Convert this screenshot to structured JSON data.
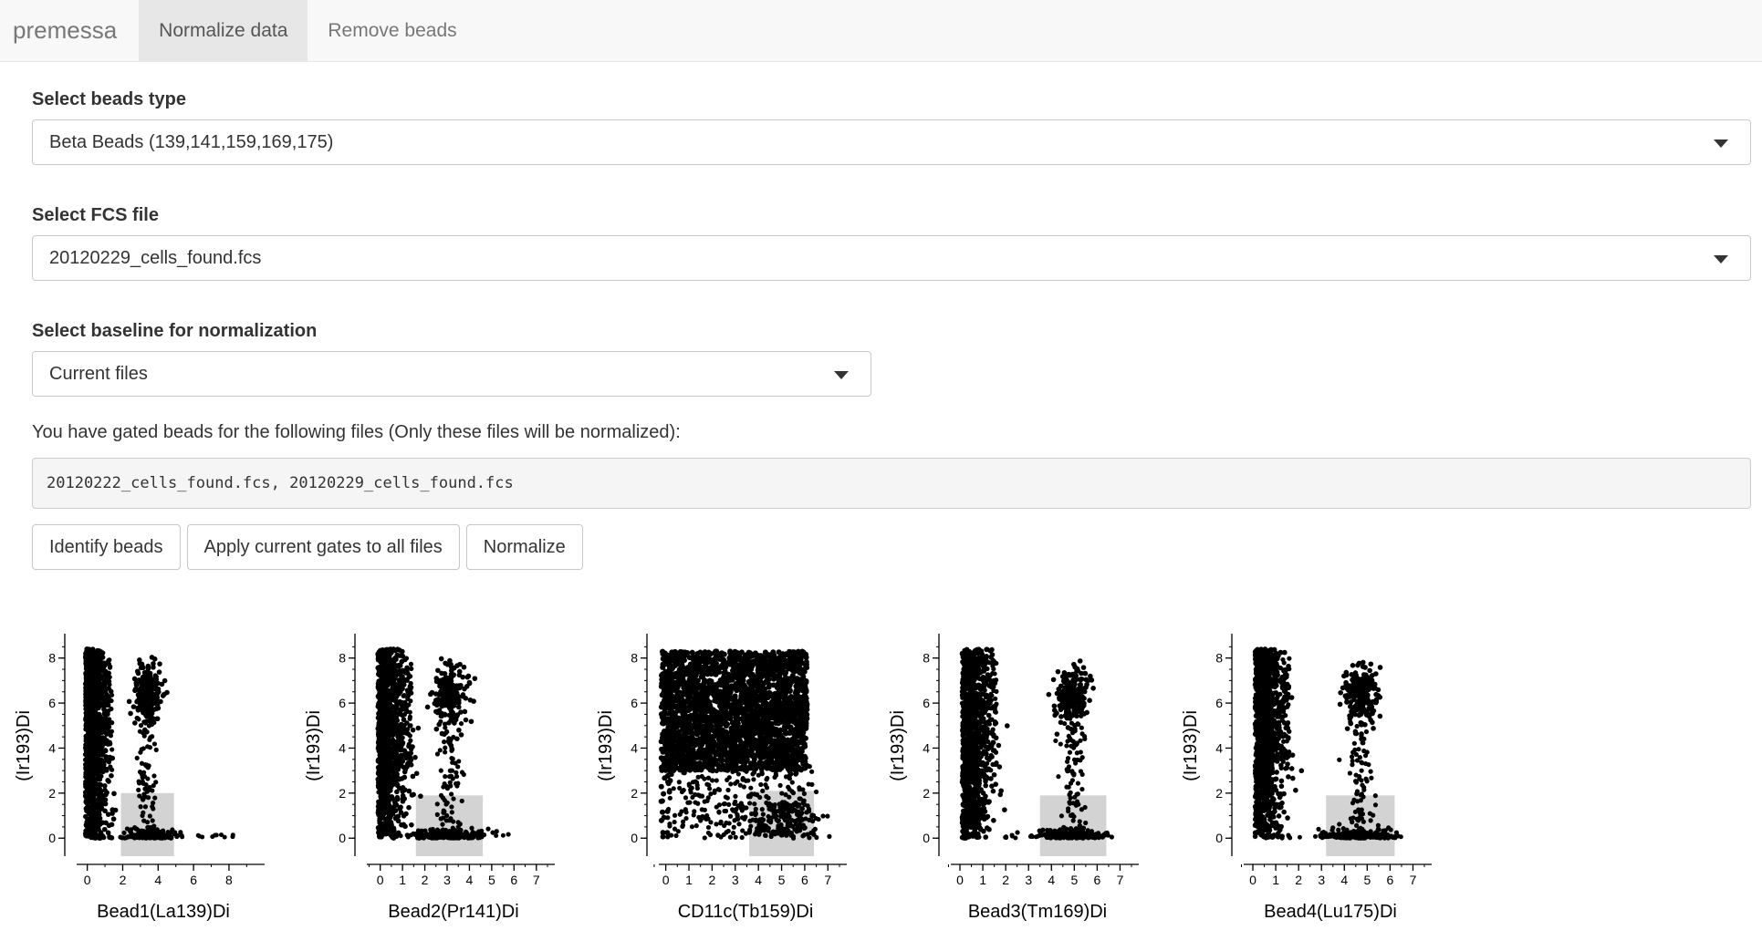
{
  "navbar": {
    "brand": "premessa",
    "tabs": [
      {
        "label": "Normalize data",
        "active": true
      },
      {
        "label": "Remove beads",
        "active": false
      }
    ]
  },
  "beads_type": {
    "label": "Select beads type",
    "value": "Beta Beads (139,141,159,169,175)"
  },
  "fcs_file": {
    "label": "Select FCS file",
    "value": "20120229_cells_found.fcs"
  },
  "baseline": {
    "label": "Select baseline for normalization",
    "value": "Current files"
  },
  "gated_info": {
    "text": "You have gated beads for the following files (Only these files will be normalized):",
    "files": "20120222_cells_found.fcs, 20120229_cells_found.fcs"
  },
  "buttons": {
    "identify": "Identify beads",
    "apply": "Apply current gates to all files",
    "normalize": "Normalize"
  },
  "chart_data": [
    {
      "type": "scatter",
      "xlabel": "Bead1(La139)Di",
      "ylabel": "(Ir193)Di",
      "xticks": [
        0,
        2,
        4,
        6,
        8
      ],
      "yticks": [
        0,
        2,
        4,
        6,
        8
      ],
      "xlim": [
        -0.6,
        9.6
      ],
      "ylim": [
        -0.8,
        9.0
      ],
      "gate": {
        "x": [
          1.9,
          4.9
        ],
        "y": [
          -0.8,
          2.0
        ]
      }
    },
    {
      "type": "scatter",
      "xlabel": "Bead2(Pr141)Di",
      "ylabel": "(Ir193)Di",
      "xticks": [
        0,
        1,
        2,
        3,
        4,
        5,
        6,
        7
      ],
      "yticks": [
        0,
        2,
        4,
        6,
        8
      ],
      "xlim": [
        -0.6,
        7.5
      ],
      "ylim": [
        -0.8,
        9.0
      ],
      "gate": {
        "x": [
          1.6,
          4.6
        ],
        "y": [
          -0.8,
          1.9
        ]
      }
    },
    {
      "type": "scatter",
      "xlabel": "CD11c(Tb159)Di",
      "ylabel": "(Ir193)Di",
      "xticks": [
        0,
        1,
        2,
        3,
        4,
        5,
        6,
        7
      ],
      "yticks": [
        0,
        2,
        4,
        6,
        8
      ],
      "xlim": [
        -0.3,
        7.5
      ],
      "ylim": [
        -0.8,
        9.0
      ],
      "gate": {
        "x": [
          3.6,
          6.4
        ],
        "y": [
          -0.8,
          2.1
        ]
      }
    },
    {
      "type": "scatter",
      "xlabel": "Bead3(Tm169)Di",
      "ylabel": "(Ir193)Di",
      "xticks": [
        0,
        1,
        2,
        3,
        4,
        5,
        6,
        7
      ],
      "yticks": [
        0,
        2,
        4,
        6,
        8
      ],
      "xlim": [
        -0.4,
        7.5
      ],
      "ylim": [
        -0.8,
        9.0
      ],
      "gate": {
        "x": [
          3.5,
          6.4
        ],
        "y": [
          -0.8,
          1.9
        ]
      }
    },
    {
      "type": "scatter",
      "xlabel": "Bead4(Lu175)Di",
      "ylabel": "(Ir193)Di",
      "xticks": [
        0,
        1,
        2,
        3,
        4,
        5,
        6,
        7
      ],
      "yticks": [
        0,
        2,
        4,
        6,
        8
      ],
      "xlim": [
        -0.4,
        7.5
      ],
      "ylim": [
        -0.8,
        9.0
      ],
      "gate": {
        "x": [
          3.2,
          6.2
        ],
        "y": [
          -0.8,
          1.9
        ]
      }
    }
  ]
}
